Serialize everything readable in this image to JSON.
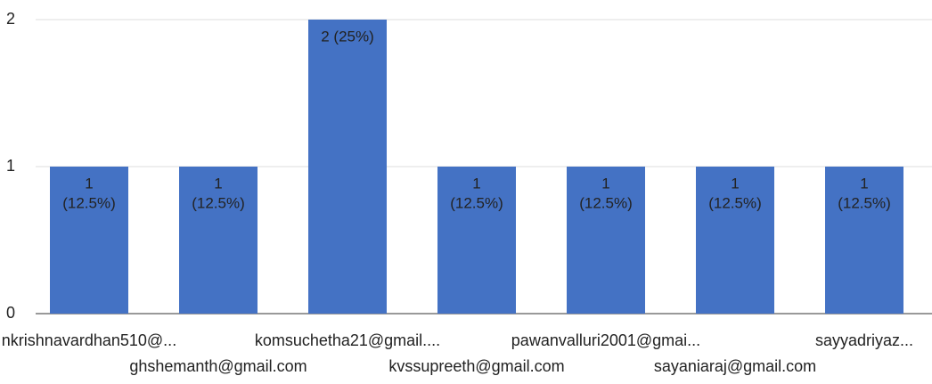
{
  "chart_data": {
    "type": "bar",
    "categories": [
      "nkrishnavardhan510@...",
      "ghshemanth@gmail.com",
      "komsuchetha21@gmail....",
      "kvssupreeth@gmail.com",
      "pawanvalluri2001@gmai...",
      "sayaniaraj@gmail.com",
      "sayyadriyaz..."
    ],
    "values": [
      1,
      1,
      2,
      1,
      1,
      1,
      1
    ],
    "value_labels": [
      [
        "1",
        "(12.5%)"
      ],
      [
        "1",
        "(12.5%)"
      ],
      [
        "2 (25%)"
      ],
      [
        "1",
        "(12.5%)"
      ],
      [
        "1",
        "(12.5%)"
      ],
      [
        "1",
        "(12.5%)"
      ],
      [
        "1",
        "(12.5%)"
      ]
    ],
    "color": "#4472c4",
    "ylim": [
      0,
      2
    ],
    "yticks": [
      0,
      1,
      2
    ],
    "grid": true
  }
}
